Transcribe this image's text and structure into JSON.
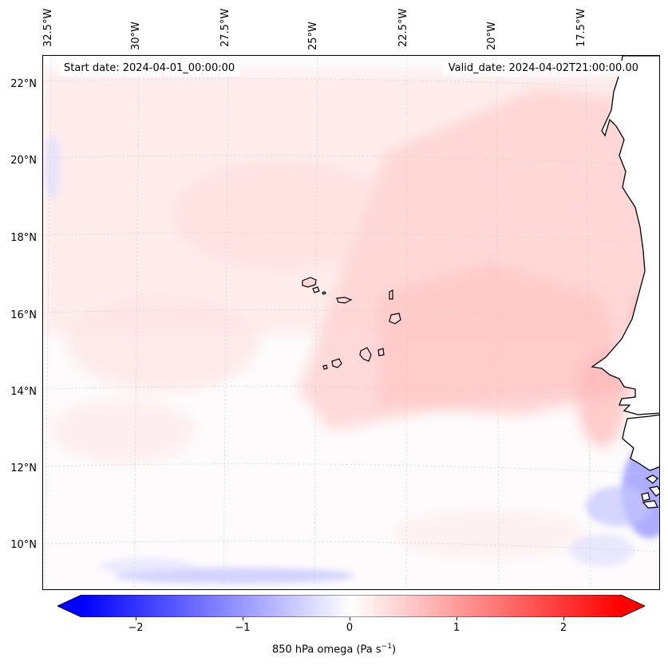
{
  "header": {
    "start_date": "Start date: 2024-04-01_00:00:00",
    "valid_date": "Valid_date: 2024-04-02T21:00:00.00"
  },
  "lon_labels": [
    "32.5°W",
    "30°W",
    "27.5°W",
    "25°W",
    "22.5°W",
    "20°W",
    "17.5°W"
  ],
  "lat_labels": [
    "22°N",
    "20°N",
    "18°N",
    "16°N",
    "14°N",
    "12°N",
    "10°N"
  ],
  "colorbar": {
    "ticks": [
      "−2",
      "−1",
      "0",
      "1",
      "2"
    ],
    "tick_values": [
      -2,
      -1,
      0,
      1,
      2
    ],
    "min": -2.6,
    "max": 2.6,
    "label_main": "850 hPa omega (Pa s",
    "label_exp": "−1",
    "label_close": ")",
    "colors": {
      "negative": "#0000ff",
      "zero": "#ffffff",
      "positive": "#ff0000"
    }
  },
  "map": {
    "ocean_color": "#fdfbfc",
    "coast_color": "#000000",
    "grid_color": "#c8c8c8"
  }
}
